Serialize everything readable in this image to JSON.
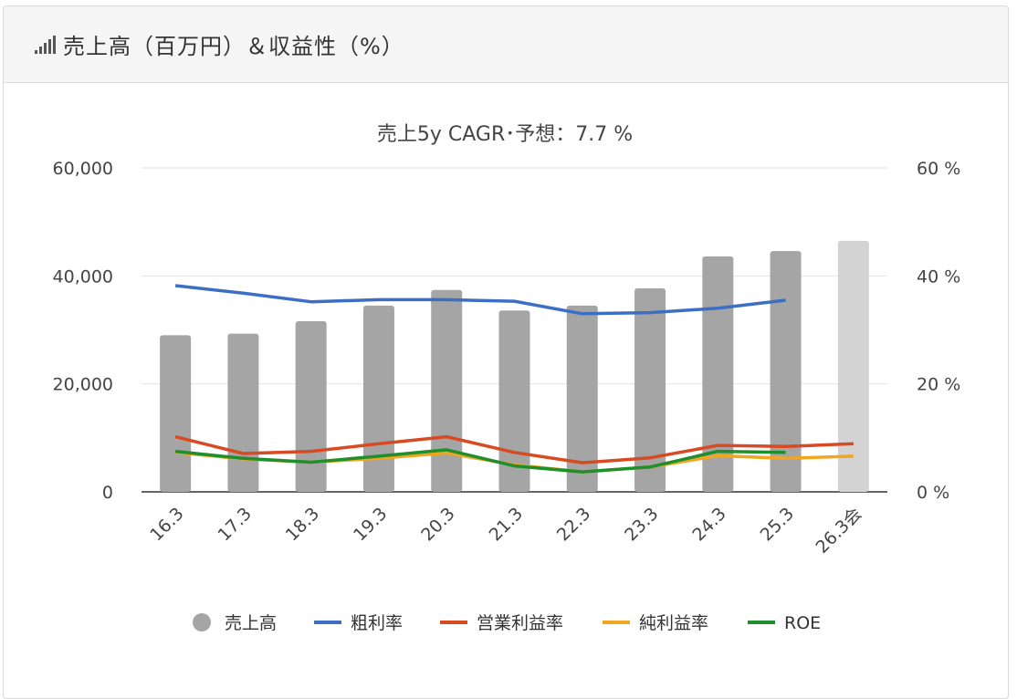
{
  "header": {
    "title": "売上高（百万円）＆収益性（%）",
    "icon": "bar-signal-icon"
  },
  "chart_data": {
    "type": "bar",
    "title": "売上5y CAGR･予想：7.7 %",
    "categories": [
      "16.3",
      "17.3",
      "18.3",
      "19.3",
      "20.3",
      "21.3",
      "22.3",
      "23.3",
      "24.3",
      "25.3",
      "26.3会"
    ],
    "y_left": {
      "ylim": [
        0,
        60000
      ],
      "ticks": [
        "0",
        "20,000",
        "40,000",
        "60,000"
      ]
    },
    "y_right": {
      "ylim": [
        0,
        60
      ],
      "ticks": [
        "0 %",
        "20 %",
        "40 %",
        "60 %"
      ]
    },
    "grid": true,
    "legend_position": "bottom",
    "bars": {
      "name": "売上高",
      "values": [
        29000,
        29300,
        31600,
        34500,
        37400,
        33600,
        34500,
        37700,
        43600,
        44600,
        46500
      ],
      "color": "#a5a5a5",
      "forecast_color": "#d3d3d3",
      "forecast_index": 10
    },
    "series": [
      {
        "name": "粗利率",
        "color": "#3c6fc4",
        "values": [
          38.2,
          36.8,
          35.2,
          35.6,
          35.6,
          35.3,
          33.0,
          33.2,
          34.0,
          35.5,
          null
        ]
      },
      {
        "name": "営業利益率",
        "color": "#d84a22",
        "values": [
          10.2,
          7.1,
          7.5,
          8.9,
          10.2,
          7.3,
          5.4,
          6.3,
          8.6,
          8.4,
          8.9
        ]
      },
      {
        "name": "純利益率",
        "color": "#f2a51f",
        "values": [
          7.3,
          6.1,
          5.5,
          6.2,
          7.2,
          5.0,
          3.7,
          4.6,
          6.7,
          6.2,
          6.6
        ]
      },
      {
        "name": "ROE",
        "color": "#1e8f2a",
        "values": [
          7.5,
          6.2,
          5.5,
          6.6,
          7.8,
          4.8,
          3.7,
          4.6,
          7.5,
          7.3,
          null
        ]
      }
    ]
  }
}
